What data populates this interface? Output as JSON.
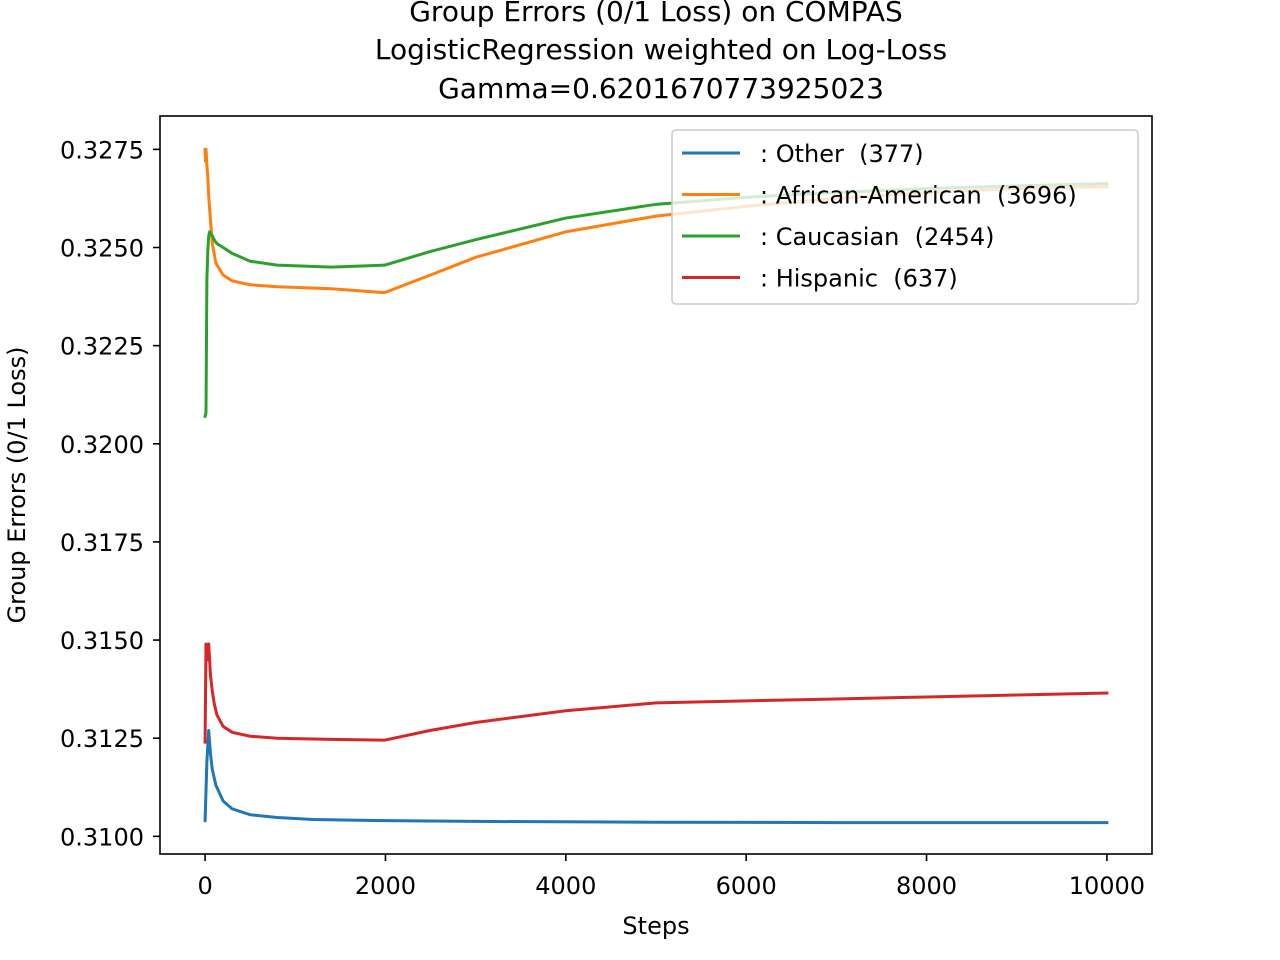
{
  "chart_data": {
    "type": "line",
    "title": [
      "Group Errors (0/1 Loss) on COMPAS",
      "LogisticRegression weighted on Log-Loss",
      "Gamma=0.6201670773925023"
    ],
    "xlabel": "Steps",
    "ylabel": "Group Errors (0/1 Loss)",
    "xlim": [
      -500,
      10500
    ],
    "ylim": [
      0.30955,
      0.32835
    ],
    "xticks": [
      0,
      2000,
      4000,
      6000,
      8000,
      10000
    ],
    "xtick_labels": [
      "0",
      "2000",
      "4000",
      "6000",
      "8000",
      "10000"
    ],
    "yticks": [
      0.31,
      0.3125,
      0.315,
      0.3175,
      0.32,
      0.3225,
      0.325,
      0.3275
    ],
    "ytick_labels": [
      "0.3100",
      "0.3125",
      "0.3150",
      "0.3175",
      "0.3200",
      "0.3225",
      "0.3250",
      "0.3275"
    ],
    "grid": false,
    "legend_position": "upper right",
    "series": [
      {
        "name": ": Other  (377)",
        "color": "#1f77b4",
        "x": [
          0,
          20,
          40,
          60,
          80,
          120,
          200,
          300,
          500,
          800,
          1200,
          2000,
          3000,
          5000,
          7000,
          10000
        ],
        "y": [
          0.3104,
          0.3119,
          0.3127,
          0.3121,
          0.3117,
          0.3113,
          0.3109,
          0.3107,
          0.31055,
          0.31048,
          0.31043,
          0.3104,
          0.31038,
          0.31036,
          0.31035,
          0.31035
        ]
      },
      {
        "name": ": African-American  (3696)",
        "color": "#ff7f0e",
        "x": [
          0,
          5,
          10,
          15,
          20,
          30,
          40,
          60,
          80,
          120,
          200,
          300,
          500,
          800,
          1400,
          1990,
          2500,
          3000,
          4000,
          5000,
          6000,
          7000,
          8000,
          9000,
          10000
        ],
        "y": [
          0.3275,
          0.3272,
          0.3275,
          0.3273,
          0.3271,
          0.3268,
          0.3263,
          0.3257,
          0.3251,
          0.3246,
          0.3243,
          0.32415,
          0.32405,
          0.324,
          0.32395,
          0.32385,
          0.3243,
          0.32475,
          0.3254,
          0.3258,
          0.32605,
          0.32625,
          0.3264,
          0.3265,
          0.32655
        ]
      },
      {
        "name": ": Caucasian  (2454)",
        "color": "#2ca02c",
        "x": [
          0,
          10,
          20,
          30,
          40,
          50,
          60,
          80,
          100,
          130,
          200,
          300,
          500,
          800,
          1400,
          1990,
          2500,
          3000,
          4000,
          5000,
          6000,
          7000,
          8000,
          9000,
          10000
        ],
        "y": [
          0.3207,
          0.3208,
          0.3242,
          0.3249,
          0.3253,
          0.3254,
          0.32535,
          0.3253,
          0.3252,
          0.3251,
          0.325,
          0.32485,
          0.32465,
          0.32455,
          0.3245,
          0.32455,
          0.3249,
          0.3252,
          0.32575,
          0.3261,
          0.32628,
          0.3264,
          0.3265,
          0.32657,
          0.32663
        ]
      },
      {
        "name": ": Hispanic  (637)",
        "color": "#d62728",
        "x": [
          0,
          10,
          20,
          30,
          40,
          50,
          60,
          80,
          100,
          130,
          200,
          300,
          500,
          800,
          1400,
          1990,
          2500,
          3000,
          4000,
          5000,
          6000,
          7000,
          8000,
          9000,
          10000
        ],
        "y": [
          0.3124,
          0.3149,
          0.3148,
          0.3145,
          0.3149,
          0.3145,
          0.3141,
          0.3137,
          0.3134,
          0.3131,
          0.3128,
          0.31265,
          0.31255,
          0.3125,
          0.31247,
          0.31245,
          0.3127,
          0.3129,
          0.3132,
          0.3134,
          0.31345,
          0.3135,
          0.31355,
          0.3136,
          0.31365
        ]
      }
    ]
  }
}
